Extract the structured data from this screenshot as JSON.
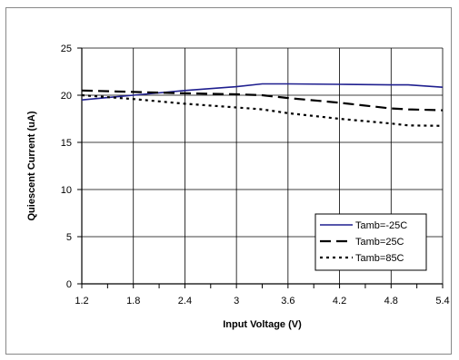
{
  "chart_data": {
    "type": "line",
    "title": "",
    "xlabel": "Input Voltage (V)",
    "ylabel": "Quiescent Current (uA)",
    "xlim": [
      1.2,
      5.4
    ],
    "ylim": [
      0,
      25
    ],
    "x_ticks": [
      "1.2",
      "1.8",
      "2.4",
      "3",
      "3.6",
      "4.2",
      "4.8",
      "5.4"
    ],
    "y_ticks": [
      "0",
      "5",
      "10",
      "15",
      "20",
      "25"
    ],
    "grid": true,
    "legend_position": "bottom-right",
    "series": [
      {
        "name": "Tamb=-25C",
        "style": "solid",
        "color": "#1f1f8f",
        "x": [
          1.2,
          1.8,
          2.4,
          3.0,
          3.3,
          3.6,
          4.2,
          4.8,
          5.0,
          5.4
        ],
        "y": [
          19.5,
          20.0,
          20.5,
          20.9,
          21.2,
          21.2,
          21.15,
          21.1,
          21.1,
          20.85
        ]
      },
      {
        "name": "Tamb=25C",
        "style": "dash",
        "color": "#000000",
        "x": [
          1.2,
          1.8,
          2.4,
          3.0,
          3.3,
          3.6,
          4.2,
          4.8,
          5.0,
          5.4
        ],
        "y": [
          20.5,
          20.35,
          20.2,
          20.1,
          20.0,
          19.7,
          19.2,
          18.6,
          18.5,
          18.4
        ]
      },
      {
        "name": "Tamb=85C",
        "style": "dot",
        "color": "#000000",
        "x": [
          1.2,
          1.8,
          2.4,
          3.0,
          3.3,
          3.6,
          4.2,
          4.8,
          5.0,
          5.4
        ],
        "y": [
          20.0,
          19.6,
          19.1,
          18.7,
          18.5,
          18.1,
          17.5,
          17.0,
          16.8,
          16.75
        ]
      }
    ]
  }
}
